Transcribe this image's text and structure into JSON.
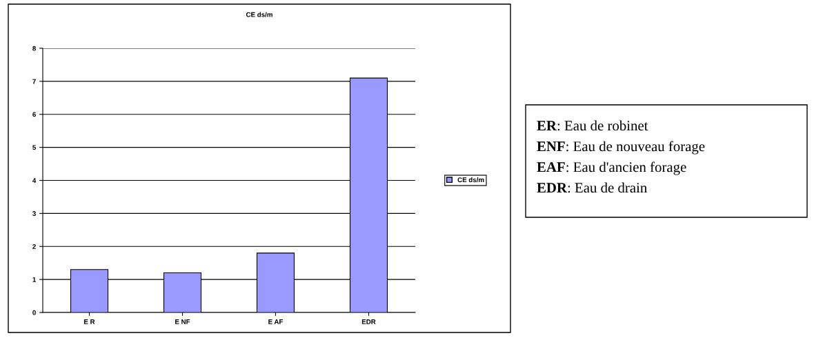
{
  "chart_data": {
    "type": "bar",
    "title": "CE ds/m",
    "categories": [
      "E R",
      "E NF",
      "E AF",
      "EDR"
    ],
    "series": [
      {
        "name": "CE ds/m",
        "color": "#9999ff",
        "values": [
          1.3,
          1.2,
          1.8,
          7.1
        ]
      }
    ],
    "ylim": [
      0,
      8
    ],
    "yticks": [
      0,
      1,
      2,
      3,
      4,
      5,
      6,
      7,
      8
    ],
    "grid": "y",
    "legend": "right",
    "annotations": [
      "ER: Eau de robinet",
      "ENF: Eau de nouveau forage",
      "EAF: Eau d'ancien forage",
      "EDR: Eau de drain"
    ]
  }
}
